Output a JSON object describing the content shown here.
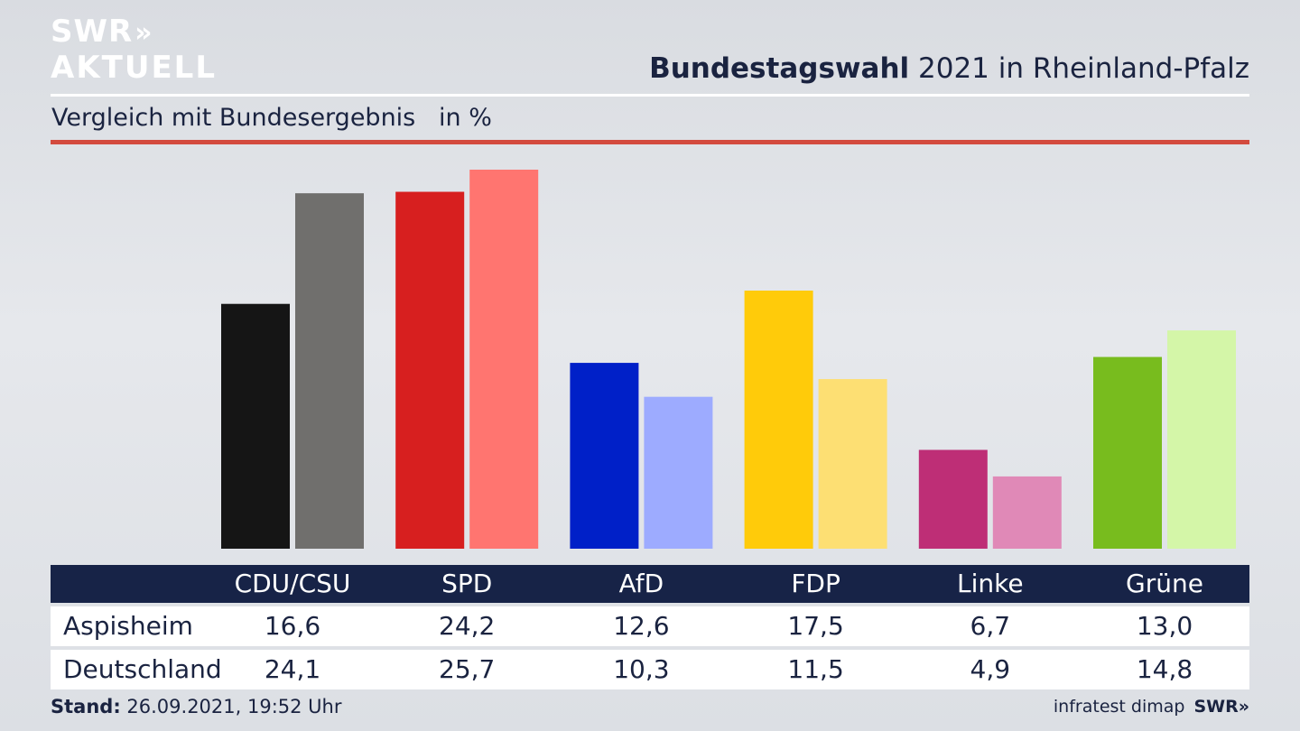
{
  "brand": {
    "logo_line1": "SWR",
    "logo_arrows": "»",
    "logo_line2": "AKTUELL"
  },
  "header": {
    "title_bold": "Bundestagswahl",
    "title_rest": " 2021 in Rheinland-Pfalz",
    "subtitle": "Vergleich mit Bundesergebnis   in %"
  },
  "table": {
    "rows": [
      {
        "label": "Aspisheim"
      },
      {
        "label": "Deutschland"
      }
    ]
  },
  "footer": {
    "stand_label": "Stand:",
    "stand_value": " 26.09.2021, 19:52 Uhr",
    "source": "infratest dimap",
    "swr": "SWR»"
  },
  "chart_data": {
    "type": "bar",
    "categories": [
      "CDU/CSU",
      "SPD",
      "AfD",
      "FDP",
      "Linke",
      "Grüne"
    ],
    "series": [
      {
        "name": "Aspisheim",
        "values": [
          16.6,
          24.2,
          12.6,
          17.5,
          6.7,
          13.0
        ],
        "labels": [
          "16,6",
          "24,2",
          "12,6",
          "17,5",
          "6,7",
          "13,0"
        ],
        "colors": [
          "#151515",
          "#d71f1f",
          "#0020c8",
          "#ffcb0a",
          "#be2e76",
          "#78bc1e"
        ]
      },
      {
        "name": "Deutschland",
        "values": [
          24.1,
          25.7,
          10.3,
          11.5,
          4.9,
          14.8
        ],
        "labels": [
          "24,1",
          "25,7",
          "10,3",
          "11,5",
          "4,9",
          "14,8"
        ],
        "colors": [
          "#706f6d",
          "#ff7570",
          "#9dabff",
          "#fddf73",
          "#e089b7",
          "#d4f6a8"
        ]
      }
    ],
    "ylim": [
      0,
      25.7
    ]
  }
}
